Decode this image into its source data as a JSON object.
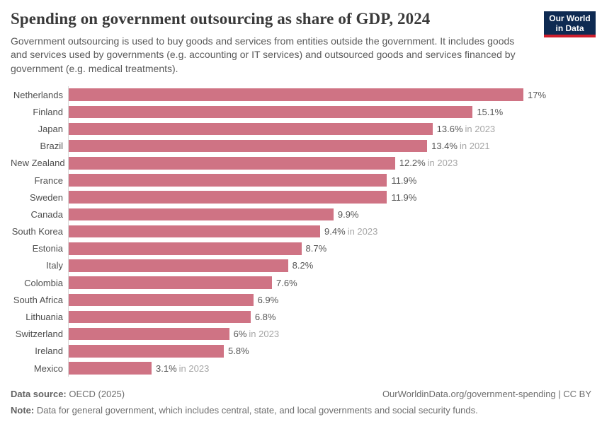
{
  "header": {
    "title": "Spending on government outsourcing as share of GDP, 2024",
    "subtitle": "Government outsourcing is used to buy goods and services from entities outside the government. It includes goods and services used by governments (e.g. accounting or IT services) and outsourced goods and services financed by government (e.g. medical treatments).",
    "logo_line1": "Our World",
    "logo_line2": "in Data"
  },
  "chart_data": {
    "type": "bar",
    "orientation": "horizontal",
    "title": "Spending on government outsourcing as share of GDP, 2024",
    "categories": [
      "Netherlands",
      "Finland",
      "Japan",
      "Brazil",
      "New Zealand",
      "France",
      "Sweden",
      "Canada",
      "South Korea",
      "Estonia",
      "Italy",
      "Colombia",
      "South Africa",
      "Lithuania",
      "Switzerland",
      "Ireland",
      "Mexico"
    ],
    "values": [
      17,
      15.1,
      13.6,
      13.4,
      12.2,
      11.9,
      11.9,
      9.9,
      9.4,
      8.7,
      8.2,
      7.6,
      6.9,
      6.8,
      6,
      5.8,
      3.1
    ],
    "value_labels": [
      "17%",
      "15.1%",
      "13.6%",
      "13.4%",
      "12.2%",
      "11.9%",
      "11.9%",
      "9.9%",
      "9.4%",
      "8.7%",
      "8.2%",
      "7.6%",
      "6.9%",
      "6.8%",
      "6%",
      "5.8%",
      "3.1%"
    ],
    "year_notes": [
      "",
      "",
      "in 2023",
      "in 2021",
      "in 2023",
      "",
      "",
      "",
      "in 2023",
      "",
      "",
      "",
      "",
      "",
      "in 2023",
      "",
      "in 2023"
    ],
    "xlabel": "",
    "ylabel": "",
    "xlim": [
      0,
      17
    ],
    "grid": false,
    "legend": "none",
    "bar_color": "#cf7384"
  },
  "footer": {
    "datasource_label": "Data source:",
    "datasource_value": " OECD (2025)",
    "rights": "OurWorldinData.org/government-spending | CC BY",
    "note_label": "Note:",
    "note_value": " Data for general government, which includes central, state, and local governments and social security funds."
  },
  "colors": {
    "bar": "#cf7384",
    "axis_line": "#dadada",
    "title_text": "#3a3a3a",
    "subtitle_text": "#5a5a5a",
    "label_text": "#4f4f4f",
    "value_text": "#565656",
    "year_text": "#a6a6a6",
    "footer_text": "#6e6e6e",
    "logo_navy": "#0e2a52",
    "logo_red": "#cf1d2c"
  }
}
